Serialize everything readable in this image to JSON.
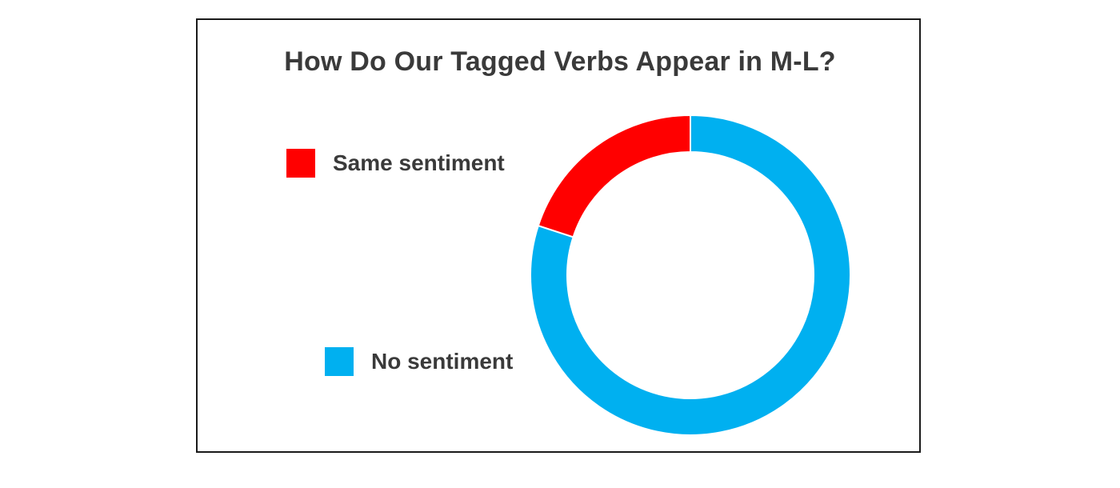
{
  "chart_data": {
    "type": "pie",
    "variant": "donut",
    "title": "How Do Our Tagged Verbs Appear in M-L?",
    "categories": [
      "Same sentiment",
      "No sentiment"
    ],
    "values": [
      20,
      80
    ],
    "colors": [
      "#ff0000",
      "#00b0f0"
    ],
    "legend": {
      "placement": "left",
      "entries": [
        "Same sentiment",
        "No sentiment"
      ]
    },
    "grid": false
  }
}
